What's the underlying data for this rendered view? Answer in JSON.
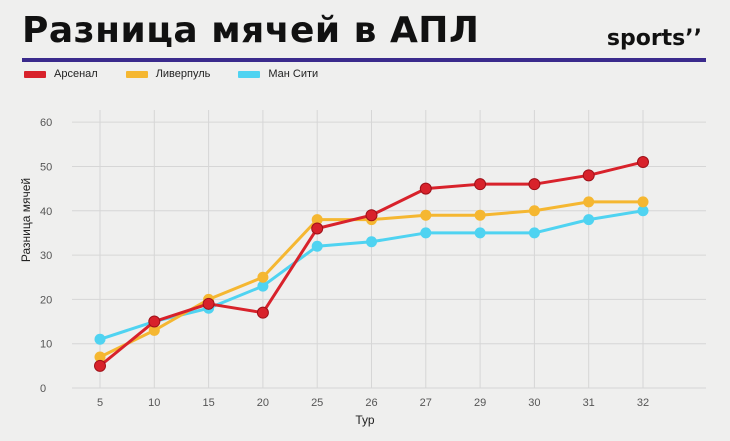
{
  "header": {
    "title": "Разница мячей в АПЛ",
    "brand": "sports",
    "brand_mark": "’’"
  },
  "colors": {
    "background": "#efefee",
    "rule": "#3a2a8c",
    "grid": "#d6d6d6"
  },
  "chart_data": {
    "type": "line",
    "title": "Разница мячей в АПЛ",
    "xlabel": "Тур",
    "ylabel": "Разница мячей",
    "categories": [
      "5",
      "10",
      "15",
      "20",
      "25",
      "26",
      "27",
      "29",
      "30",
      "31",
      "32"
    ],
    "ylim": [
      0,
      65
    ],
    "yticks": [
      0,
      10,
      20,
      30,
      40,
      50,
      60
    ],
    "grid": true,
    "legend_position": "top-left",
    "series": [
      {
        "name": "Арсенал",
        "color": "#d8222b",
        "values": [
          5,
          15,
          19,
          17,
          36,
          39,
          45,
          46,
          46,
          48,
          51
        ]
      },
      {
        "name": "Ливерпуль",
        "color": "#f5b731",
        "values": [
          7,
          13,
          20,
          25,
          38,
          38,
          39,
          39,
          40,
          42,
          42
        ]
      },
      {
        "name": "Ман Сити",
        "color": "#4fd3f1",
        "values": [
          11,
          15,
          18,
          23,
          32,
          33,
          35,
          35,
          35,
          38,
          40
        ]
      }
    ]
  }
}
